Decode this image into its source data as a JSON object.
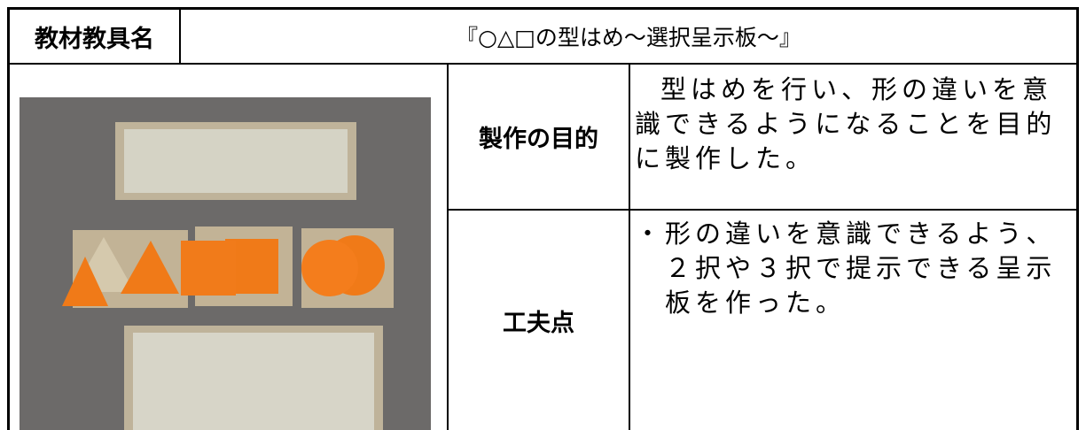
{
  "header": {
    "label": "教材教具名",
    "title": "『○△□の型はめ～選択呈示板～』"
  },
  "rows": [
    {
      "label": "製作の目的",
      "text": "型はめを行い、形の違いを意識できるようになることを目的に製作した。"
    },
    {
      "label": "工夫点",
      "text": "・形の違いを意識できるよう、２択や３択で提示できる呈示板を作った。"
    }
  ]
}
